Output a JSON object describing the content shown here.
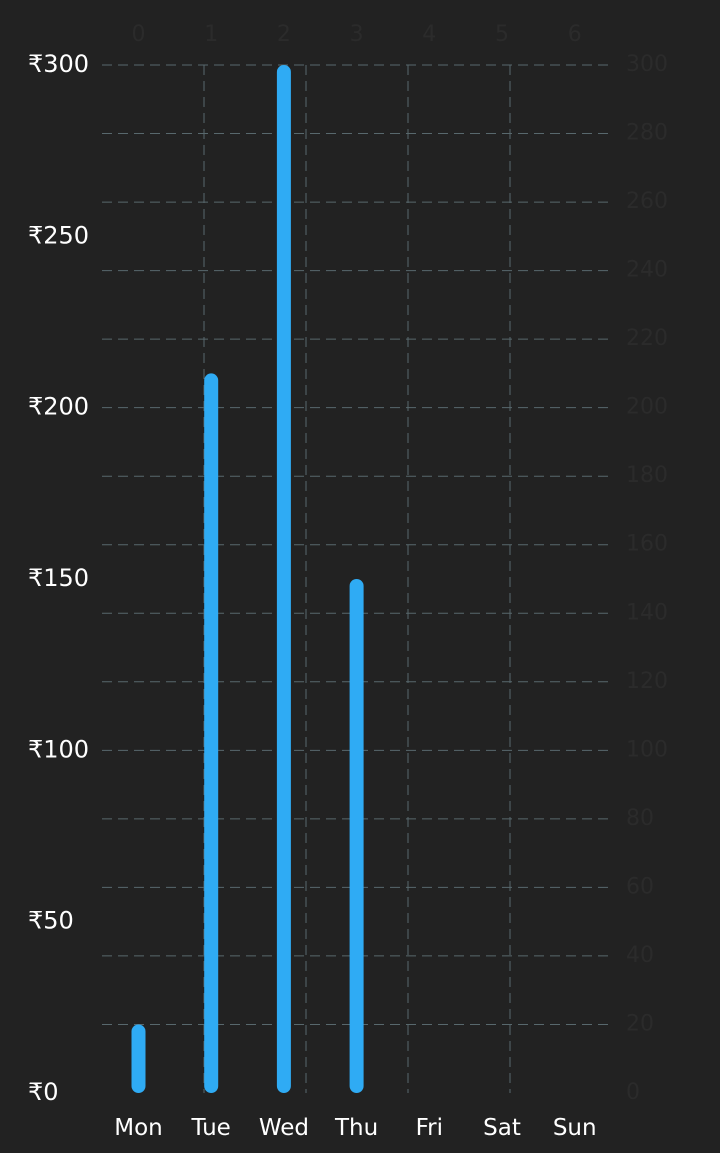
{
  "chart_data": {
    "type": "bar",
    "categories": [
      "Mon",
      "Tue",
      "Wed",
      "Thu",
      "Fri",
      "Sat",
      "Sun"
    ],
    "values": [
      20,
      210,
      300,
      150,
      0,
      0,
      0
    ],
    "ylim": [
      0,
      300
    ],
    "y_axis_left": {
      "ticks": [
        0,
        50,
        100,
        150,
        200,
        250,
        300
      ],
      "tick_labels": [
        "₹0",
        "₹50",
        "₹100",
        "₹150",
        "₹200",
        "₹250",
        "₹300"
      ]
    },
    "y_axis_right": {
      "ticks": [
        0,
        20,
        40,
        60,
        80,
        100,
        120,
        140,
        160,
        180,
        200,
        220,
        240,
        260,
        280,
        300
      ],
      "tick_labels": [
        "0",
        "20",
        "40",
        "60",
        "80",
        "100",
        "120",
        "140",
        "160",
        "180",
        "200",
        "220",
        "240",
        "260",
        "280",
        "300"
      ]
    },
    "x_axis_top": {
      "tick_labels": [
        "0",
        "1",
        "2",
        "3",
        "4",
        "5",
        "6"
      ]
    },
    "grid": true,
    "bar_color": "#2fabf4",
    "grid_color": "#58686d",
    "background": "#222222",
    "title": "",
    "xlabel": "",
    "ylabel": ""
  }
}
